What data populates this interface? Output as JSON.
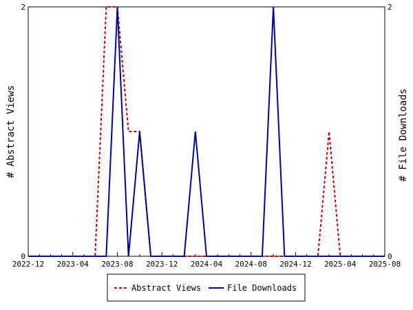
{
  "chart_data": {
    "type": "line",
    "x": [
      "2022-12",
      "2023-01",
      "2023-02",
      "2023-03",
      "2023-04",
      "2023-05",
      "2023-06",
      "2023-07",
      "2023-08",
      "2023-09",
      "2023-10",
      "2023-11",
      "2023-12",
      "2024-01",
      "2024-02",
      "2024-03",
      "2024-04",
      "2024-05",
      "2024-06",
      "2024-07",
      "2024-08",
      "2024-09",
      "2024-10",
      "2024-11",
      "2024-12",
      "2025-01",
      "2025-02",
      "2025-03",
      "2025-04",
      "2025-05",
      "2025-06",
      "2025-07",
      "2025-08"
    ],
    "x_ticks": [
      "2022-12",
      "2023-04",
      "2023-08",
      "2023-12",
      "2024-04",
      "2024-08",
      "2024-12",
      "2025-04",
      "2025-08"
    ],
    "series": [
      {
        "name": "Abstract Views",
        "axis": "left",
        "color": "#cc0000",
        "style": "dashed",
        "values": [
          0,
          0,
          0,
          0,
          0,
          0,
          0,
          2,
          2,
          1,
          1,
          0,
          0,
          0,
          0,
          0,
          0,
          0,
          0,
          0,
          0,
          0,
          0,
          0,
          0,
          0,
          0,
          1,
          0,
          0,
          0,
          0,
          0
        ]
      },
      {
        "name": "File Downloads",
        "axis": "right",
        "color": "#0000aa",
        "style": "solid",
        "values": [
          0,
          0,
          0,
          0,
          0,
          0,
          0,
          0,
          2,
          0,
          1,
          0,
          0,
          0,
          0,
          1,
          0,
          0,
          0,
          0,
          0,
          0,
          2,
          0,
          0,
          0,
          0,
          0,
          0,
          0,
          0,
          0,
          0
        ]
      }
    ],
    "y_left": {
      "label": "# Abstract Views",
      "ylim": [
        0,
        2
      ],
      "ticks": [
        "0",
        "2"
      ]
    },
    "y_right": {
      "label": "# File Downloads",
      "ylim": [
        0,
        2
      ],
      "ticks": [
        "0",
        "2"
      ]
    },
    "legend": {
      "position": "bottom-center"
    },
    "grid": false
  }
}
